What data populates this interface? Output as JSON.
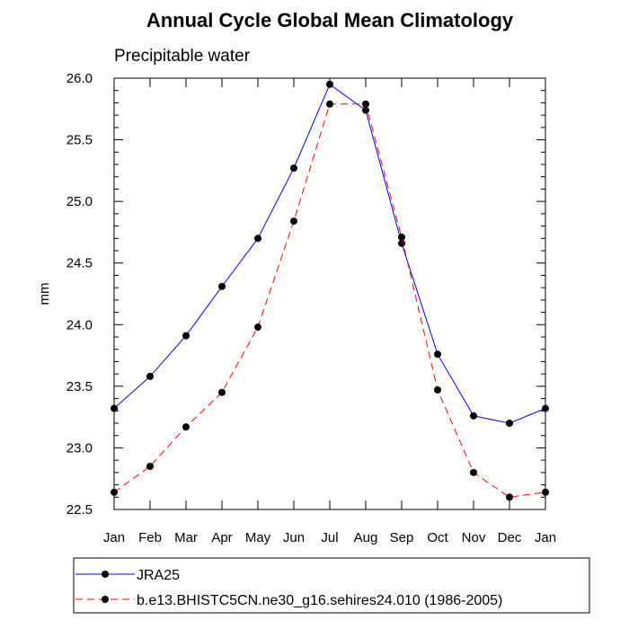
{
  "chart_data": {
    "type": "line",
    "title": "Annual Cycle Global Mean Climatology",
    "subtitle": "Precipitable water",
    "xlabel": "",
    "ylabel": "mm",
    "categories": [
      "Jan",
      "Feb",
      "Mar",
      "Apr",
      "May",
      "Jun",
      "Jul",
      "Aug",
      "Sep",
      "Oct",
      "Nov",
      "Dec",
      "Jan"
    ],
    "ylim": [
      22.5,
      26.0
    ],
    "yticks": [
      "22.5",
      "23.0",
      "23.5",
      "24.0",
      "24.5",
      "25.0",
      "25.5",
      "26.0"
    ],
    "grid": false,
    "legend_position": "bottom",
    "series": [
      {
        "name": "JRA25",
        "color": "#0000ff",
        "line_style": "solid",
        "marker": "filled-circle",
        "values": [
          23.32,
          23.58,
          23.91,
          24.31,
          24.7,
          25.27,
          25.95,
          25.74,
          24.66,
          23.76,
          23.26,
          23.2,
          23.32
        ]
      },
      {
        "name": "b.e13.BHISTC5CN.ne30_g16.sehires24.010 (1986-2005)",
        "color": "#ff0000",
        "line_style": "dashed",
        "marker": "filled-circle",
        "values": [
          22.64,
          22.85,
          23.17,
          23.45,
          23.98,
          24.84,
          25.79,
          25.79,
          24.71,
          23.47,
          22.8,
          22.6,
          22.64
        ]
      }
    ]
  }
}
